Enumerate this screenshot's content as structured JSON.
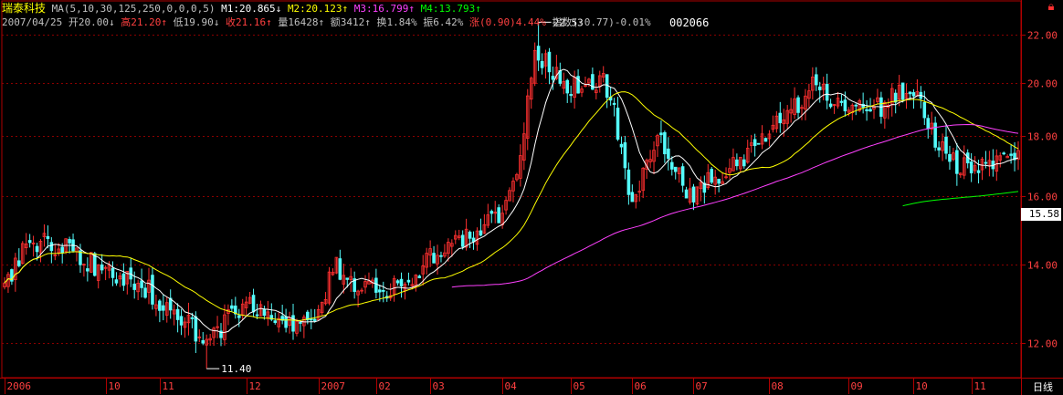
{
  "header": {
    "stock_name": "瑞泰科技",
    "ma_def": "MA(5,10,30,125,250,0,0,0,5)",
    "m1": "M1:20.865↓",
    "m2": "M2:20.123↑",
    "m3": "M3:16.799↑",
    "m4": "M4:13.793↑",
    "date": "2007/04/25",
    "open": "开20.00↓",
    "high": "高21.20↑",
    "low": "低19.90↓",
    "close": "收21.16↑",
    "volume": "量16428↑",
    "amount": "额3412↑",
    "turnover": "换1.84%",
    "amplitude": "振6.42%",
    "change": "涨(0.90)4.44%",
    "index": "指数(-0.77)-0.01%"
  },
  "code": "002066",
  "period_label": "日线",
  "current_price_badge": "15.58",
  "colors": {
    "up": "#ff3030",
    "down": "#54fcfc",
    "ma1": "#ffffff",
    "ma2": "#ffff00",
    "ma3": "#ff40ff",
    "ma4": "#00ff00",
    "ma5": "#ffffff",
    "grid": "#8b0000",
    "axis": "#b00000",
    "text": "#ff4040"
  },
  "icons": {
    "corner": "lock-icon"
  },
  "chart_data": {
    "type": "candlestick",
    "y_scale": "log",
    "ylim": [
      11.2,
      23.2
    ],
    "y_ticks": [
      "22.00",
      "20.00",
      "18.00",
      "16.00",
      "14.00",
      "12.00"
    ],
    "y_tick_values": [
      22,
      20,
      18,
      16,
      14,
      12
    ],
    "x_tick_labels": [
      "2006",
      "10",
      "11",
      "12",
      "2007",
      "02",
      "03",
      "04",
      "05",
      "06",
      "07",
      "08",
      "09",
      "10",
      "11"
    ],
    "x_tick_index": [
      0,
      28,
      43,
      67,
      87,
      103,
      118,
      138,
      157,
      174,
      191,
      212,
      234,
      252,
      268
    ],
    "n_bars": 282,
    "max_label": "22.53",
    "min_label": "11.40",
    "max_index": 148,
    "min_index": 56,
    "close_anchors": [
      [
        0,
        13.5
      ],
      [
        5,
        14.3
      ],
      [
        10,
        14.75
      ],
      [
        20,
        14.3
      ],
      [
        30,
        13.7
      ],
      [
        40,
        13.3
      ],
      [
        50,
        12.5
      ],
      [
        56,
        11.9
      ],
      [
        62,
        12.6
      ],
      [
        67,
        12.9
      ],
      [
        75,
        12.7
      ],
      [
        80,
        12.3
      ],
      [
        85,
        12.6
      ],
      [
        92,
        13.9
      ],
      [
        100,
        13.3
      ],
      [
        110,
        13.4
      ],
      [
        116,
        13.9
      ],
      [
        120,
        14.4
      ],
      [
        130,
        14.9
      ],
      [
        138,
        15.3
      ],
      [
        143,
        17.5
      ],
      [
        146,
        20.5
      ],
      [
        148,
        21.2
      ],
      [
        150,
        20.8
      ],
      [
        155,
        19.8
      ],
      [
        160,
        19.8
      ],
      [
        166,
        20.1
      ],
      [
        170,
        18.3
      ],
      [
        174,
        15.6
      ],
      [
        178,
        17.3
      ],
      [
        182,
        17.8
      ],
      [
        186,
        16.9
      ],
      [
        190,
        16.0
      ],
      [
        195,
        16.6
      ],
      [
        200,
        16.7
      ],
      [
        205,
        17.2
      ],
      [
        210,
        17.7
      ],
      [
        215,
        18.7
      ],
      [
        220,
        19.2
      ],
      [
        225,
        20.0
      ],
      [
        230,
        19.3
      ],
      [
        236,
        19.0
      ],
      [
        242,
        19.0
      ],
      [
        248,
        19.6
      ],
      [
        252,
        19.9
      ],
      [
        256,
        18.4
      ],
      [
        260,
        17.6
      ],
      [
        264,
        16.9
      ],
      [
        268,
        17.0
      ],
      [
        272,
        16.8
      ],
      [
        276,
        17.2
      ],
      [
        281,
        17.3
      ]
    ],
    "series": [
      {
        "name": "M1",
        "period": 10
      },
      {
        "name": "M2",
        "period": 30
      },
      {
        "name": "M3",
        "period": 125
      },
      {
        "name": "M4",
        "period": 250
      }
    ]
  }
}
